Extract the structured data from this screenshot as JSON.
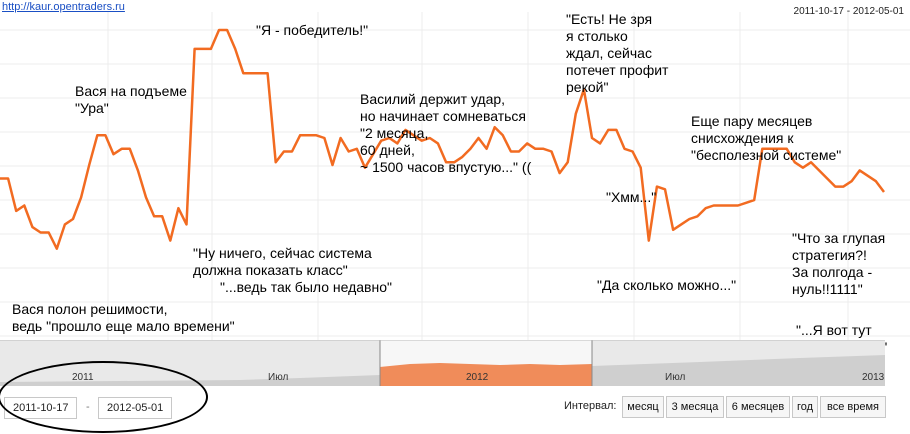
{
  "header": {
    "url": "http://kaur.opentraders.ru",
    "date_range": "2011-10-17 - 2012-05-01"
  },
  "chart_data": {
    "type": "line",
    "color": "#f26b21",
    "grid": true,
    "note": "values approximate, read as 0 = bottom and 100 = top of plot area; y axis unlabeled",
    "ylim": [
      0,
      100
    ],
    "values": [
      43,
      43,
      29,
      29,
      23,
      20,
      17,
      15,
      21,
      21,
      25,
      31,
      46,
      62,
      62,
      54,
      55,
      59,
      58,
      53,
      44,
      32,
      29,
      28,
      31,
      33,
      26,
      21,
      28,
      30,
      43,
      54,
      91,
      91,
      91,
      91,
      96,
      96,
      91,
      82,
      82,
      82,
      79,
      77,
      69,
      45,
      49,
      51,
      52,
      55,
      41,
      49,
      51,
      46,
      46,
      55,
      44,
      49,
      49,
      49,
      40,
      37,
      53,
      50,
      53,
      44,
      42,
      46,
      55,
      55,
      53,
      47,
      62,
      55,
      58,
      42,
      42,
      55,
      55,
      58,
      49,
      59,
      69,
      54,
      56,
      53,
      53,
      49,
      54,
      56,
      52,
      55,
      41,
      59,
      75,
      44,
      42,
      50,
      52,
      56,
      58,
      53,
      53,
      60,
      58,
      60,
      58,
      60,
      68,
      69,
      78,
      68,
      56,
      65,
      60,
      58,
      52,
      38,
      47,
      51,
      53,
      55,
      50,
      49,
      38,
      40,
      33,
      43,
      53,
      64,
      51,
      58
    ],
    "value_groups_note": "see chart script: fine sampling of the orange series",
    "series": [
      {
        "values": [
          45,
          45,
          33,
          35,
          27,
          25,
          25,
          19,
          28,
          30,
          38,
          50,
          61,
          61,
          54,
          56,
          56,
          48,
          38,
          31,
          31,
          22,
          34,
          28,
          93,
          93,
          93,
          100,
          100,
          93,
          84,
          84,
          84,
          84,
          51,
          55,
          55,
          61,
          61,
          61,
          60,
          50,
          60,
          55,
          56,
          49,
          54,
          59,
          60,
          58,
          63,
          61,
          59,
          60,
          58,
          51,
          51,
          53,
          56,
          60,
          56,
          64,
          61,
          55,
          55,
          58,
          56,
          56,
          55,
          47,
          51,
          69,
          78,
          60,
          58,
          63,
          63,
          56,
          55,
          49,
          22,
          42,
          41,
          26,
          28,
          30,
          31,
          34,
          35,
          35,
          35,
          35,
          36,
          37,
          56,
          56,
          56,
          56,
          51,
          49,
          51,
          48,
          45,
          42,
          42,
          44,
          48,
          46,
          44,
          40
        ]
      }
    ],
    "annotations": [
      "Вася полон решимости,\nведь \"прошло еще мало времени\"",
      "Вася на подъеме\n\"Ура\"",
      "\"Ну ничего, сейчас система\nдолжна показать класс\"",
      "\"...ведь так было недавно\"",
      "\"Я - победитель!\"",
      "Василий держит удар,\nно начинает сомневаться\n\"2 месяца,\n60 дней,\n~ 1500 часов впустую...\" ((",
      "\"Есть! Не зря\nя столько\nждал, сейчас\nпотечет профит\nрекой\"",
      "\"Хмм...\"",
      "\"Да сколько можно...\"",
      "Еще пару месяцев\nснисхождения к\n\"бесполезной системе\"",
      "\"Что за глупая\nстратегия?!\nЗа полгода -\nнуль!!1111\"",
      "\"...Я вот тут\nнашел новую\""
    ]
  },
  "navigator": {
    "labels": [
      "2011",
      "Июл",
      "2012",
      "Июл",
      "2013"
    ],
    "start_date": "2011-10-17",
    "end_date": "2012-05-01"
  },
  "controls": {
    "interval_label": "Интервал:",
    "buttons": [
      "месяц",
      "3 месяца",
      "6 месяцев",
      "год",
      "все время"
    ]
  }
}
